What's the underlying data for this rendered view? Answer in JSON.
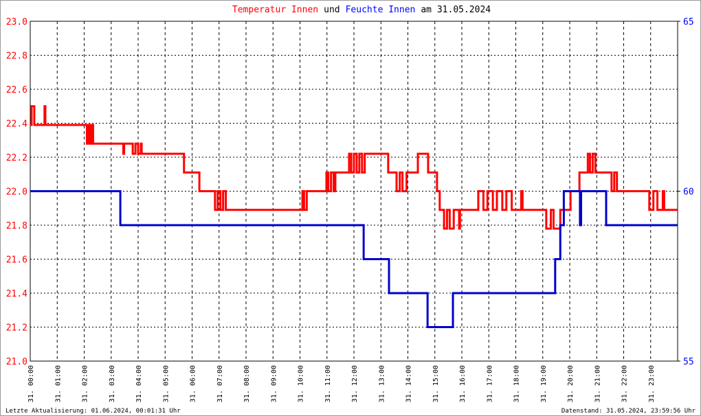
{
  "chart_data": {
    "type": "line",
    "title_parts": [
      {
        "text": "Temperatur Innen",
        "color": "#ff0000"
      },
      {
        "text": "und",
        "color": "#000000"
      },
      {
        "text": "Feuchte Innen",
        "color": "#0000ff"
      },
      {
        "text": "am 31.05.2024",
        "color": "#000000"
      }
    ],
    "footer_left": "Letzte Aktualisierung: 01.06.2024, 00:01:31 Uhr",
    "footer_right": "Datenstand: 31.05.2024, 23:59:56 Uhr",
    "xlim": [
      0,
      24
    ],
    "xticks": [
      {
        "value": 0,
        "label": "31. 00:00"
      },
      {
        "value": 1,
        "label": "31. 01:00"
      },
      {
        "value": 2,
        "label": "31. 02:00"
      },
      {
        "value": 3,
        "label": "31. 03:00"
      },
      {
        "value": 4,
        "label": "31. 04:00"
      },
      {
        "value": 5,
        "label": "31. 05:00"
      },
      {
        "value": 6,
        "label": "31. 06:00"
      },
      {
        "value": 7,
        "label": "31. 07:00"
      },
      {
        "value": 8,
        "label": "31. 08:00"
      },
      {
        "value": 9,
        "label": "31. 09:00"
      },
      {
        "value": 10,
        "label": "31. 10:00"
      },
      {
        "value": 11,
        "label": "31. 11:00"
      },
      {
        "value": 12,
        "label": "31. 12:00"
      },
      {
        "value": 13,
        "label": "31. 13:00"
      },
      {
        "value": 14,
        "label": "31. 14:00"
      },
      {
        "value": 15,
        "label": "31. 15:00"
      },
      {
        "value": 16,
        "label": "31. 16:00"
      },
      {
        "value": 17,
        "label": "31. 17:00"
      },
      {
        "value": 18,
        "label": "31. 18:00"
      },
      {
        "value": 19,
        "label": "31. 19:00"
      },
      {
        "value": 20,
        "label": "31. 20:00"
      },
      {
        "value": 21,
        "label": "31. 21:00"
      },
      {
        "value": 22,
        "label": "31. 22:00"
      },
      {
        "value": 23,
        "label": "31. 23:00"
      }
    ],
    "ylim": [
      21,
      23
    ],
    "yticks": [
      {
        "value": 21,
        "label": "21.0"
      },
      {
        "value": 21.2,
        "label": "21.2"
      },
      {
        "value": 21.4,
        "label": "21.4"
      },
      {
        "value": 21.6,
        "label": "21.6"
      },
      {
        "value": 21.8,
        "label": "21.8"
      },
      {
        "value": 22,
        "label": "22.0"
      },
      {
        "value": 22.2,
        "label": "22.2"
      },
      {
        "value": 22.4,
        "label": "22.4"
      },
      {
        "value": 22.6,
        "label": "22.6"
      },
      {
        "value": 22.8,
        "label": "22.8"
      },
      {
        "value": 23,
        "label": "23.0"
      }
    ],
    "ytick_color": "#ff0000",
    "y2lim": [
      55,
      65
    ],
    "y2ticks": [
      55,
      60,
      65
    ],
    "y2tick_color": "#0000ff",
    "grid": true,
    "series": [
      {
        "color": "#ff0000",
        "axis": "y",
        "x": [
          0,
          0.05,
          0.05,
          0.15,
          0.15,
          0.53,
          0.53,
          0.56,
          0.56,
          2.1,
          2.1,
          2.15,
          2.15,
          2.22,
          2.22,
          2.28,
          2.28,
          2.33,
          2.33,
          3.45,
          3.45,
          3.48,
          3.48,
          3.8,
          3.8,
          3.9,
          3.9,
          4.0,
          4.0,
          4.1,
          4.1,
          4.13,
          4.13,
          5.7,
          5.7,
          6.27,
          6.27,
          6.85,
          6.85,
          6.95,
          6.95,
          7.05,
          7.05,
          7.15,
          7.15,
          7.25,
          7.25,
          10.09,
          10.09,
          10.15,
          10.15,
          10.25,
          10.25,
          10.98,
          10.98,
          11.05,
          11.05,
          11.15,
          11.15,
          11.25,
          11.25,
          11.31,
          11.31,
          11.82,
          11.82,
          11.9,
          11.9,
          12.0,
          12.0,
          12.1,
          12.1,
          12.2,
          12.2,
          12.3,
          12.3,
          12.4,
          12.4,
          13.27,
          13.27,
          13.58,
          13.58,
          13.7,
          13.7,
          13.8,
          13.8,
          13.95,
          13.95,
          14.37,
          14.37,
          14.75,
          14.75,
          15.08,
          15.08,
          15.18,
          15.18,
          15.34,
          15.34,
          15.45,
          15.45,
          15.55,
          15.55,
          15.7,
          15.7,
          15.9,
          15.9,
          15.93,
          15.93,
          16.61,
          16.61,
          16.8,
          16.8,
          16.95,
          16.95,
          17.15,
          17.15,
          17.3,
          17.3,
          17.5,
          17.5,
          17.65,
          17.65,
          17.85,
          17.85,
          18.2,
          18.2,
          18.25,
          18.25,
          19.13,
          19.13,
          19.3,
          19.3,
          19.4,
          19.4,
          19.65,
          19.65,
          20.03,
          20.03,
          20.36,
          20.36,
          20.67,
          20.67,
          20.75,
          20.75,
          20.85,
          20.85,
          20.95,
          20.95,
          21.55,
          21.55,
          21.65,
          21.65,
          21.75,
          21.75,
          22.95,
          22.95,
          23.1,
          23.1,
          23.25,
          23.25,
          23.45,
          23.45,
          23.5,
          23.5,
          24
        ],
        "values": [
          22.39,
          22.39,
          22.5,
          22.5,
          22.39,
          22.39,
          22.5,
          22.5,
          22.39,
          22.39,
          22.28,
          22.28,
          22.39,
          22.39,
          22.28,
          22.28,
          22.39,
          22.39,
          22.28,
          22.28,
          22.22,
          22.22,
          22.28,
          22.28,
          22.22,
          22.22,
          22.28,
          22.28,
          22.22,
          22.22,
          22.28,
          22.28,
          22.22,
          22.22,
          22.11,
          22.11,
          22.0,
          22.0,
          21.89,
          21.89,
          22.0,
          22.0,
          21.89,
          21.89,
          22.0,
          22.0,
          21.89,
          21.89,
          22.0,
          22.0,
          21.89,
          21.89,
          22.0,
          22.0,
          22.11,
          22.11,
          22.0,
          22.0,
          22.11,
          22.11,
          22.0,
          22.0,
          22.11,
          22.11,
          22.22,
          22.22,
          22.11,
          22.11,
          22.22,
          22.22,
          22.11,
          22.11,
          22.22,
          22.22,
          22.11,
          22.11,
          22.22,
          22.22,
          22.11,
          22.11,
          22.0,
          22.0,
          22.11,
          22.11,
          22.0,
          22.0,
          22.11,
          22.11,
          22.22,
          22.22,
          22.11,
          22.11,
          22.0,
          22.0,
          21.89,
          21.89,
          21.78,
          21.78,
          21.89,
          21.89,
          21.78,
          21.78,
          21.89,
          21.89,
          21.78,
          21.78,
          21.89,
          21.89,
          22.0,
          22.0,
          21.89,
          21.89,
          22.0,
          22.0,
          21.89,
          21.89,
          22.0,
          22.0,
          21.89,
          21.89,
          22.0,
          22.0,
          21.89,
          21.89,
          22.0,
          22.0,
          21.89,
          21.89,
          21.78,
          21.78,
          21.89,
          21.89,
          21.78,
          21.78,
          21.89,
          21.89,
          22.0,
          22.0,
          22.11,
          22.11,
          22.22,
          22.22,
          22.11,
          22.11,
          22.22,
          22.22,
          22.11,
          22.11,
          22.0,
          22.0,
          22.11,
          22.11,
          22.0,
          22.0,
          21.89,
          21.89,
          22.0,
          22.0,
          21.89,
          21.89,
          22.0,
          22.0,
          21.89,
          21.89
        ]
      },
      {
        "color": "#0000cc",
        "axis": "y2",
        "x": [
          0,
          3.34,
          3.34,
          12.36,
          12.36,
          13.3,
          13.3,
          14.73,
          14.73,
          15.67,
          15.67,
          19.46,
          19.46,
          19.65,
          19.65,
          19.78,
          19.78,
          20.38,
          20.38,
          20.42,
          20.42,
          21.35,
          21.35,
          24
        ],
        "values": [
          60,
          60,
          59,
          59,
          58,
          58,
          57,
          57,
          56,
          56,
          57,
          57,
          58,
          58,
          59,
          59,
          60,
          60,
          59,
          59,
          60,
          60,
          59,
          59
        ]
      }
    ]
  }
}
